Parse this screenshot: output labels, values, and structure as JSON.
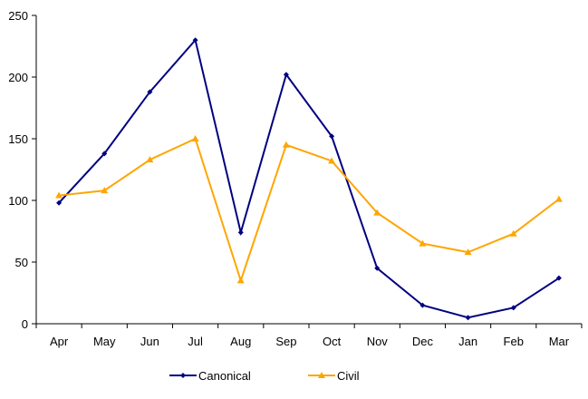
{
  "chart_data": {
    "type": "line",
    "title": "",
    "xlabel": "",
    "ylabel": "",
    "categories": [
      "Apr",
      "May",
      "Jun",
      "Jul",
      "Aug",
      "Sep",
      "Oct",
      "Nov",
      "Dec",
      "Jan",
      "Feb",
      "Mar"
    ],
    "ylim": [
      0,
      250
    ],
    "yticks": [
      "0",
      "50",
      "100",
      "150",
      "200",
      "250"
    ],
    "grid": false,
    "legend_position": "bottom",
    "series": [
      {
        "name": "Canonical",
        "color": "#000080",
        "marker": "diamond",
        "values": [
          98,
          138,
          188,
          230,
          74,
          202,
          152,
          45,
          15,
          5,
          13,
          37
        ]
      },
      {
        "name": "Civil",
        "color": "#FFA500",
        "marker": "triangle",
        "values": [
          104,
          108,
          133,
          150,
          35,
          145,
          132,
          90,
          65,
          58,
          73,
          101
        ]
      }
    ]
  }
}
